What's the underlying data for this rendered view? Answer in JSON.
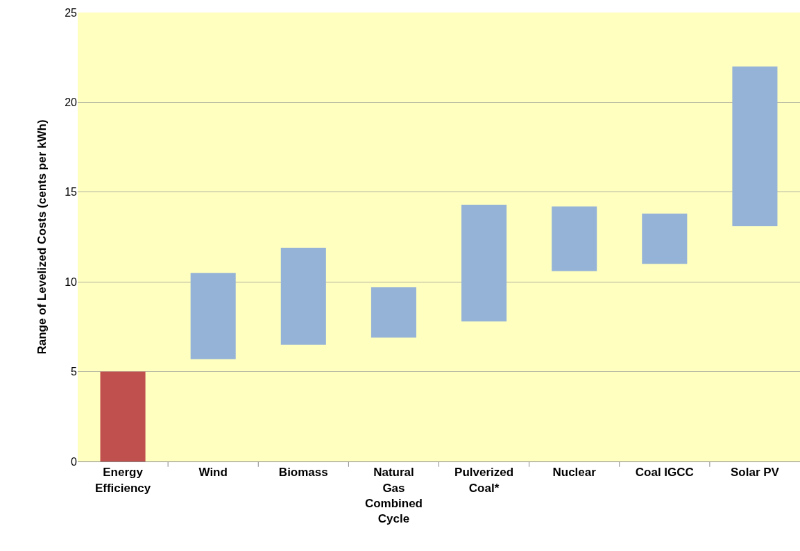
{
  "chart_data": {
    "type": "bar",
    "ylabel": "Range of Levelized Costs (cents per kWh)",
    "categories": [
      "Energy Efficiency",
      "Wind",
      "Biomass",
      "Natural Gas Combined Cycle",
      "Pulverized Coal*",
      "Nuclear",
      "Coal IGCC",
      "Solar PV"
    ],
    "base": [
      0,
      5.7,
      6.5,
      6.9,
      7.8,
      10.6,
      11.0,
      13.1
    ],
    "values": [
      5.0,
      4.8,
      5.4,
      2.8,
      6.5,
      3.6,
      2.8,
      8.9
    ],
    "colors": [
      "#c0504d",
      "#95b3d7",
      "#95b3d7",
      "#95b3d7",
      "#95b3d7",
      "#95b3d7",
      "#95b3d7",
      "#95b3d7"
    ],
    "ylim": [
      0,
      25
    ],
    "yticks": [
      0,
      5,
      10,
      15,
      20,
      25
    ],
    "grid": "y"
  }
}
